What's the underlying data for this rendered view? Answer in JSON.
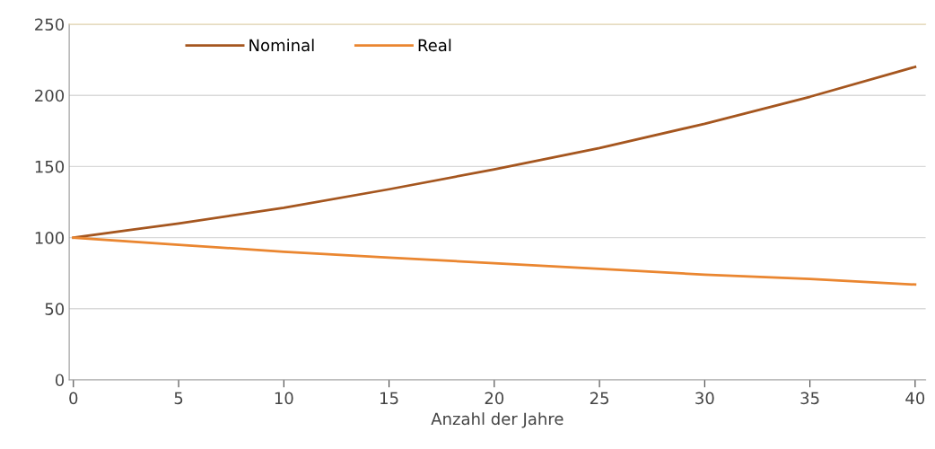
{
  "chart_data": {
    "type": "line",
    "xlabel": "Anzahl der Jahre",
    "x": [
      0,
      5,
      10,
      15,
      20,
      25,
      30,
      35,
      40
    ],
    "series": [
      {
        "name": "Nominal",
        "color": "#a5561f",
        "values": [
          100,
          110,
          121,
          134,
          148,
          163,
          180,
          199,
          220
        ]
      },
      {
        "name": "Real",
        "color": "#ea8630",
        "values": [
          100,
          95,
          90,
          86,
          82,
          78,
          74,
          71,
          67
        ]
      }
    ],
    "xlim": [
      -0.2,
      40.5
    ],
    "xticks": [
      0,
      5,
      10,
      15,
      20,
      25,
      30,
      35,
      40
    ],
    "ylim": [
      0,
      250
    ],
    "yticks": [
      0,
      50,
      100,
      150,
      200,
      250
    ],
    "grid": "y",
    "legend": "top left",
    "marker": "none",
    "line_style": "solid"
  }
}
